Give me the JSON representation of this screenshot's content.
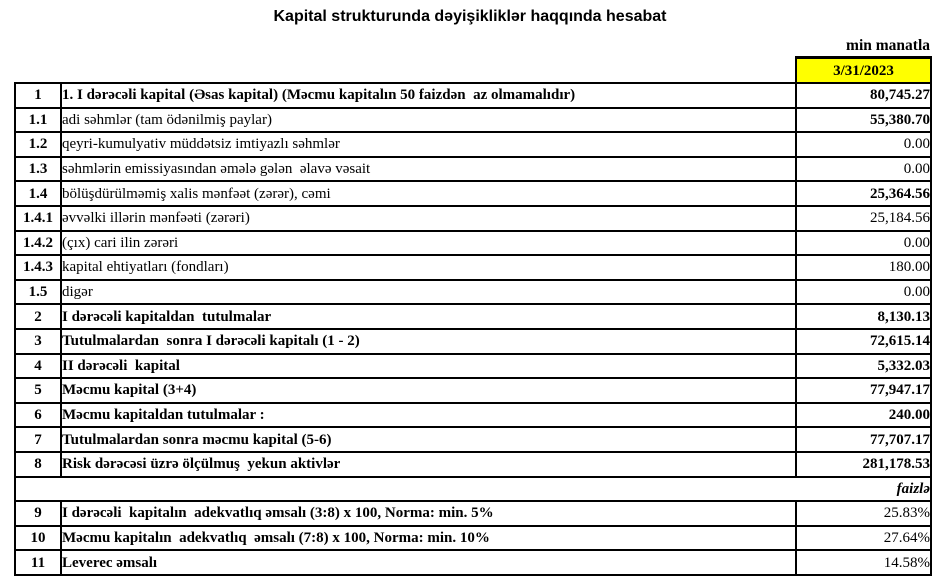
{
  "report": {
    "title": "Kapital strukturunda dəyişikliklər haqqında hesabat",
    "unit_label": "min manatla",
    "date_header": "3/31/2023",
    "colors": {
      "date_header_bg": "#FFFF00",
      "border": "#000000",
      "text": "#000000",
      "background": "#FFFFFF"
    }
  },
  "table": {
    "rows": [
      {
        "no": "1",
        "label": "1. I dərəcəli kapital (Əsas kapital) (Məcmu kapitalın 50 faizdən  az olmamalıdır)",
        "value": "80,745.27",
        "label_bold": true,
        "value_bold": true
      },
      {
        "no": "1.1",
        "label": "adi səhmlər (tam ödənilmiş paylar)",
        "value": "55,380.70",
        "label_bold": false,
        "value_bold": true
      },
      {
        "no": "1.2",
        "label": "qeyri-kumulyativ müddətsiz imtiyazlı səhmlər",
        "value": "0.00",
        "label_bold": false,
        "value_bold": false
      },
      {
        "no": "1.3",
        "label": "səhmlərin emissiyasından əmələ gələn  əlavə vəsait",
        "value": "0.00",
        "label_bold": false,
        "value_bold": false
      },
      {
        "no": "1.4",
        "label": "bölüşdürülməmiş xalis mənfəət (zərər), cəmi",
        "value": "25,364.56",
        "label_bold": false,
        "value_bold": true
      },
      {
        "no": "1.4.1",
        "label": "əvvəlki illərin mənfəəti (zərəri)",
        "value": "25,184.56",
        "label_bold": false,
        "value_bold": false
      },
      {
        "no": "1.4.2",
        "label": "(çıx) cari ilin zərəri",
        "value": "0.00",
        "label_bold": false,
        "value_bold": false
      },
      {
        "no": "1.4.3",
        "label": "kapital ehtiyatları (fondları)",
        "value": "180.00",
        "label_bold": false,
        "value_bold": false
      },
      {
        "no": "1.5",
        "label": "digər",
        "value": "0.00",
        "label_bold": false,
        "value_bold": false
      },
      {
        "no": "2",
        "label": "I dərəcəli kapitaldan  tutulmalar",
        "value": "8,130.13",
        "label_bold": true,
        "value_bold": true
      },
      {
        "no": "3",
        "label": "Tutulmalardan  sonra I dərəcəli kapitalı (1 - 2)",
        "value": "72,615.14",
        "label_bold": true,
        "value_bold": true
      },
      {
        "no": "4",
        "label": "II dərəcəli  kapital",
        "value": "5,332.03",
        "label_bold": true,
        "value_bold": true
      },
      {
        "no": "5",
        "label": "Məcmu kapital (3+4)",
        "value": "77,947.17",
        "label_bold": true,
        "value_bold": true
      },
      {
        "no": "6",
        "label": "Məcmu kapitaldan tutulmalar :",
        "value": "240.00",
        "label_bold": true,
        "value_bold": true
      },
      {
        "no": "7",
        "label": "Tutulmalardan sonra məcmu kapital (5-6)",
        "value": "77,707.17",
        "label_bold": true,
        "value_bold": true
      },
      {
        "no": "8",
        "label": "Risk dərəcəsi üzrə ölçülmuş  yekun aktivlər",
        "value": "281,178.53",
        "label_bold": true,
        "value_bold": true
      },
      {
        "spacer": true,
        "label": "faizlə"
      },
      {
        "no": "9",
        "label": "I dərəcəli  kapitalın  adekvatlıq əmsalı (3:8) x 100, Norma: min. 5%",
        "value": "25.83%",
        "label_bold": true,
        "value_bold": false
      },
      {
        "no": "10",
        "label": "Məcmu kapitalın  adekvatlıq  əmsalı (7:8) x 100, Norma: min. 10%",
        "value": "27.64%",
        "label_bold": true,
        "value_bold": false
      },
      {
        "no": "11",
        "label": "Leverec əmsalı",
        "value": "14.58%",
        "label_bold": true,
        "value_bold": false
      }
    ]
  }
}
